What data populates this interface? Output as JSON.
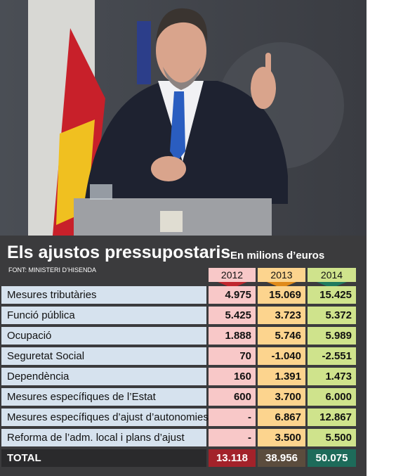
{
  "header": {
    "title": "Els ajustos pressupostaris",
    "subtitle": "En milions d’euros",
    "source": "FONT: MINISTERI D’HISENDA"
  },
  "table": {
    "columns": [
      "2012",
      "2013",
      "2014"
    ],
    "rows": [
      [
        "Mesures tributàries",
        "4.975",
        "15.069",
        "15.425"
      ],
      [
        "Funció pública",
        "5.425",
        "3.723",
        "5.372"
      ],
      [
        "Ocupació",
        "1.888",
        "5.746",
        "5.989"
      ],
      [
        "Seguretat Social",
        "70",
        "-1.040",
        "-2.551"
      ],
      [
        "Dependència",
        "160",
        "1.391",
        "1.473"
      ],
      [
        "Mesures específiques de l’Estat",
        "600",
        "3.700",
        "6.000"
      ],
      [
        "Mesures específiques d’ajust d’autonomies",
        "-",
        "6.867",
        "12.867"
      ],
      [
        "Reforma de l’adm. local i plans d’ajust",
        "-",
        "3.500",
        "5.500"
      ]
    ],
    "total": [
      "TOTAL",
      "13.118",
      "38.956",
      "50.075"
    ]
  }
}
